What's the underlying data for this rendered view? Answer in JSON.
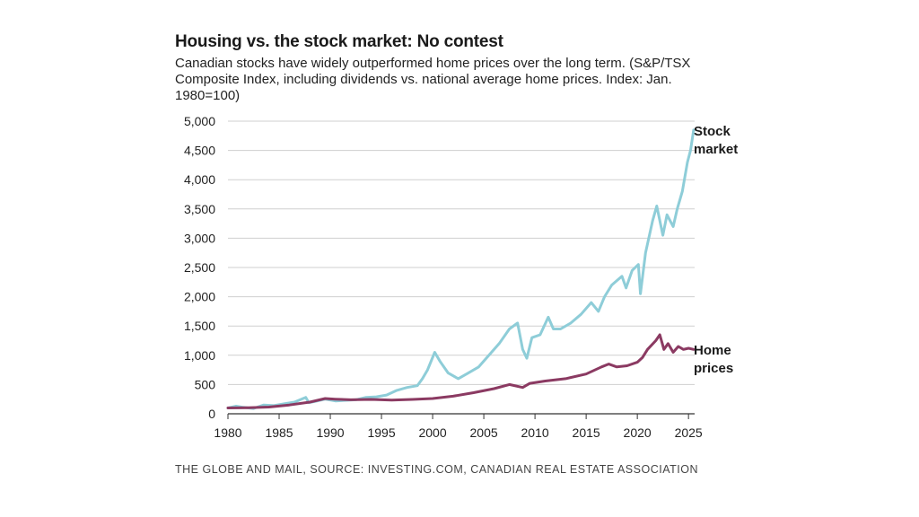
{
  "header": {
    "title": "Housing vs. the stock market: No contest",
    "subtitle": "Canadian stocks have widely outperformed home prices over the long term. (S&P/TSX Composite Index, including dividends vs. national average home prices. Index: Jan. 1980=100)"
  },
  "footer": {
    "source": "THE GLOBE AND MAIL, SOURCE: INVESTING.COM, CANADIAN REAL ESTATE ASSOCIATION"
  },
  "colors": {
    "stock": "#8ecdd8",
    "home": "#8b3a62",
    "grid": "#cfcfcf",
    "axis": "#333333"
  },
  "chart_data": {
    "type": "line",
    "title": "Housing vs. the stock market: No contest",
    "xlabel": "",
    "ylabel": "",
    "xlim": [
      1980,
      2025.6
    ],
    "ylim": [
      0,
      5000
    ],
    "x_ticks": [
      1980,
      1985,
      1990,
      1995,
      2000,
      2005,
      2010,
      2015,
      2020,
      2025
    ],
    "y_ticks": [
      0,
      500,
      1000,
      1500,
      2000,
      2500,
      3000,
      3500,
      4000,
      4500,
      5000
    ],
    "y_tick_labels": [
      "0",
      "500",
      "1,000",
      "1,500",
      "2,000",
      "2,500",
      "3,000",
      "3,500",
      "4,000",
      "4,500",
      "5,000"
    ],
    "grid": true,
    "series": [
      {
        "name": "Stock market",
        "label_lines": [
          "Stock",
          "market"
        ],
        "x": [
          1980,
          1980.8,
          1981.5,
          1982.5,
          1983.5,
          1984.5,
          1985.5,
          1986.5,
          1987.6,
          1987.9,
          1988.5,
          1989.5,
          1990.5,
          1991.5,
          1992.5,
          1993.5,
          1994.5,
          1995.5,
          1996.5,
          1997.5,
          1998.5,
          1999,
          1999.5,
          2000.2,
          2000.7,
          2001.5,
          2002.5,
          2003.5,
          2004.5,
          2005.5,
          2006.5,
          2007.5,
          2008.3,
          2008.8,
          2009.2,
          2009.7,
          2010.5,
          2011.3,
          2011.8,
          2012.5,
          2013.5,
          2014.5,
          2015.5,
          2016.2,
          2016.8,
          2017.5,
          2018.5,
          2018.9,
          2019.5,
          2020.1,
          2020.3,
          2020.8,
          2021.5,
          2021.9,
          2022.5,
          2022.9,
          2023.5,
          2023.9,
          2024.4,
          2024.9,
          2025.2,
          2025.5
        ],
        "y": [
          100,
          130,
          110,
          90,
          150,
          140,
          170,
          200,
          280,
          190,
          210,
          250,
          220,
          230,
          240,
          280,
          290,
          320,
          400,
          450,
          480,
          600,
          750,
          1050,
          900,
          700,
          600,
          700,
          800,
          1000,
          1200,
          1450,
          1550,
          1100,
          950,
          1300,
          1350,
          1650,
          1450,
          1450,
          1550,
          1700,
          1900,
          1750,
          2000,
          2200,
          2350,
          2150,
          2450,
          2550,
          2050,
          2750,
          3300,
          3550,
          3050,
          3400,
          3200,
          3500,
          3800,
          4300,
          4500,
          4850
        ]
      },
      {
        "name": "Home prices",
        "label_lines": [
          "Home",
          "prices"
        ],
        "x": [
          1980,
          1982,
          1984,
          1986,
          1988,
          1989.5,
          1990.5,
          1992,
          1994,
          1996,
          1998,
          2000,
          2002,
          2004,
          2006,
          2007.5,
          2008.8,
          2009.5,
          2011,
          2013,
          2015,
          2016.5,
          2017.2,
          2018,
          2019,
          2020,
          2020.5,
          2021,
          2021.8,
          2022.2,
          2022.6,
          2023,
          2023.5,
          2024,
          2024.5,
          2025,
          2025.5
        ],
        "y": [
          100,
          105,
          115,
          150,
          200,
          260,
          250,
          240,
          245,
          235,
          245,
          260,
          300,
          360,
          430,
          500,
          450,
          520,
          560,
          600,
          680,
          800,
          850,
          800,
          820,
          880,
          960,
          1100,
          1250,
          1350,
          1100,
          1200,
          1050,
          1150,
          1100,
          1120,
          1100
        ]
      }
    ]
  }
}
